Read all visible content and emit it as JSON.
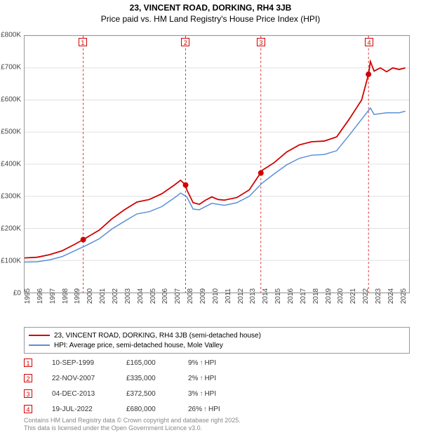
{
  "title_line1": "23, VINCENT ROAD, DORKING, RH4 3JB",
  "title_line2": "Price paid vs. HM Land Registry's House Price Index (HPI)",
  "chart": {
    "type": "line",
    "background_color": "#ffffff",
    "grid_color": "#e0e0e0",
    "border_color": "#999999",
    "x_years": [
      1995,
      1996,
      1997,
      1998,
      1999,
      2000,
      2001,
      2002,
      2003,
      2004,
      2005,
      2006,
      2007,
      2008,
      2009,
      2010,
      2011,
      2012,
      2013,
      2014,
      2015,
      2016,
      2017,
      2018,
      2019,
      2020,
      2021,
      2022,
      2023,
      2024,
      2025
    ],
    "xlim": [
      1995,
      2025.8
    ],
    "y_ticks": [
      0,
      100000,
      200000,
      300000,
      400000,
      500000,
      600000,
      700000,
      800000
    ],
    "y_labels": [
      "£0",
      "£100K",
      "£200K",
      "£300K",
      "£400K",
      "£500K",
      "£600K",
      "£700K",
      "£800K"
    ],
    "ylim": [
      0,
      800000
    ],
    "series_red": {
      "label": "23, VINCENT ROAD, DORKING, RH4 3JB (semi-detached house)",
      "color": "#d00000",
      "width": 1.8,
      "points": [
        [
          1995,
          108000
        ],
        [
          1996,
          110000
        ],
        [
          1997,
          118000
        ],
        [
          1998,
          130000
        ],
        [
          1999,
          150000
        ],
        [
          1999.7,
          165000
        ],
        [
          2000,
          172000
        ],
        [
          2001,
          195000
        ],
        [
          2002,
          230000
        ],
        [
          2003,
          258000
        ],
        [
          2004,
          282000
        ],
        [
          2005,
          290000
        ],
        [
          2006,
          308000
        ],
        [
          2007,
          335000
        ],
        [
          2007.5,
          350000
        ],
        [
          2007.9,
          335000
        ],
        [
          2008,
          320000
        ],
        [
          2008.5,
          280000
        ],
        [
          2009,
          275000
        ],
        [
          2009.5,
          288000
        ],
        [
          2010,
          298000
        ],
        [
          2010.5,
          290000
        ],
        [
          2011,
          288000
        ],
        [
          2012,
          296000
        ],
        [
          2013,
          320000
        ],
        [
          2013.9,
          372500
        ],
        [
          2014,
          380000
        ],
        [
          2015,
          405000
        ],
        [
          2016,
          438000
        ],
        [
          2017,
          460000
        ],
        [
          2018,
          470000
        ],
        [
          2019,
          472000
        ],
        [
          2020,
          485000
        ],
        [
          2021,
          540000
        ],
        [
          2022,
          600000
        ],
        [
          2022.55,
          680000
        ],
        [
          2022.7,
          720000
        ],
        [
          2023,
          690000
        ],
        [
          2023.5,
          700000
        ],
        [
          2024,
          688000
        ],
        [
          2024.5,
          700000
        ],
        [
          2025,
          695000
        ],
        [
          2025.5,
          700000
        ]
      ]
    },
    "series_blue": {
      "label": "HPI: Average price, semi-detached house, Mole Valley",
      "color": "#5b8fd6",
      "width": 1.5,
      "points": [
        [
          1995,
          95000
        ],
        [
          1996,
          96000
        ],
        [
          1997,
          102000
        ],
        [
          1998,
          112000
        ],
        [
          1999,
          130000
        ],
        [
          2000,
          148000
        ],
        [
          2001,
          168000
        ],
        [
          2002,
          198000
        ],
        [
          2003,
          222000
        ],
        [
          2004,
          245000
        ],
        [
          2005,
          252000
        ],
        [
          2006,
          268000
        ],
        [
          2007,
          295000
        ],
        [
          2007.5,
          310000
        ],
        [
          2008,
          298000
        ],
        [
          2008.5,
          260000
        ],
        [
          2009,
          258000
        ],
        [
          2010,
          278000
        ],
        [
          2011,
          272000
        ],
        [
          2012,
          280000
        ],
        [
          2013,
          300000
        ],
        [
          2014,
          340000
        ],
        [
          2015,
          370000
        ],
        [
          2016,
          398000
        ],
        [
          2017,
          418000
        ],
        [
          2018,
          428000
        ],
        [
          2019,
          430000
        ],
        [
          2020,
          442000
        ],
        [
          2021,
          490000
        ],
        [
          2022,
          540000
        ],
        [
          2022.7,
          575000
        ],
        [
          2023,
          555000
        ],
        [
          2024,
          560000
        ],
        [
          2025,
          560000
        ],
        [
          2025.5,
          565000
        ]
      ]
    },
    "marker_color": "#d00000",
    "marker_line_color": "#d00000",
    "sales_markers": [
      {
        "n": "1",
        "x": 1999.7,
        "y": 165000
      },
      {
        "n": "2",
        "x": 2007.9,
        "y": 335000
      },
      {
        "n": "3",
        "x": 2013.93,
        "y": 372500
      },
      {
        "n": "4",
        "x": 2022.55,
        "y": 680000
      }
    ]
  },
  "legend": {
    "row1_label": "23, VINCENT ROAD, DORKING, RH4 3JB (semi-detached house)",
    "row2_label": "HPI: Average price, semi-detached house, Mole Valley"
  },
  "sales_table": [
    {
      "n": "1",
      "date": "10-SEP-1999",
      "price": "£165,000",
      "diff": "9%",
      "hpi": "HPI"
    },
    {
      "n": "2",
      "date": "22-NOV-2007",
      "price": "£335,000",
      "diff": "2%",
      "hpi": "HPI"
    },
    {
      "n": "3",
      "date": "04-DEC-2013",
      "price": "£372,500",
      "diff": "3%",
      "hpi": "HPI"
    },
    {
      "n": "4",
      "date": "19-JUL-2022",
      "price": "£680,000",
      "diff": "26%",
      "hpi": "HPI"
    }
  ],
  "footer_line1": "Contains HM Land Registry data © Crown copyright and database right 2025.",
  "footer_line2": "This data is licensed under the Open Government Licence v3.0."
}
